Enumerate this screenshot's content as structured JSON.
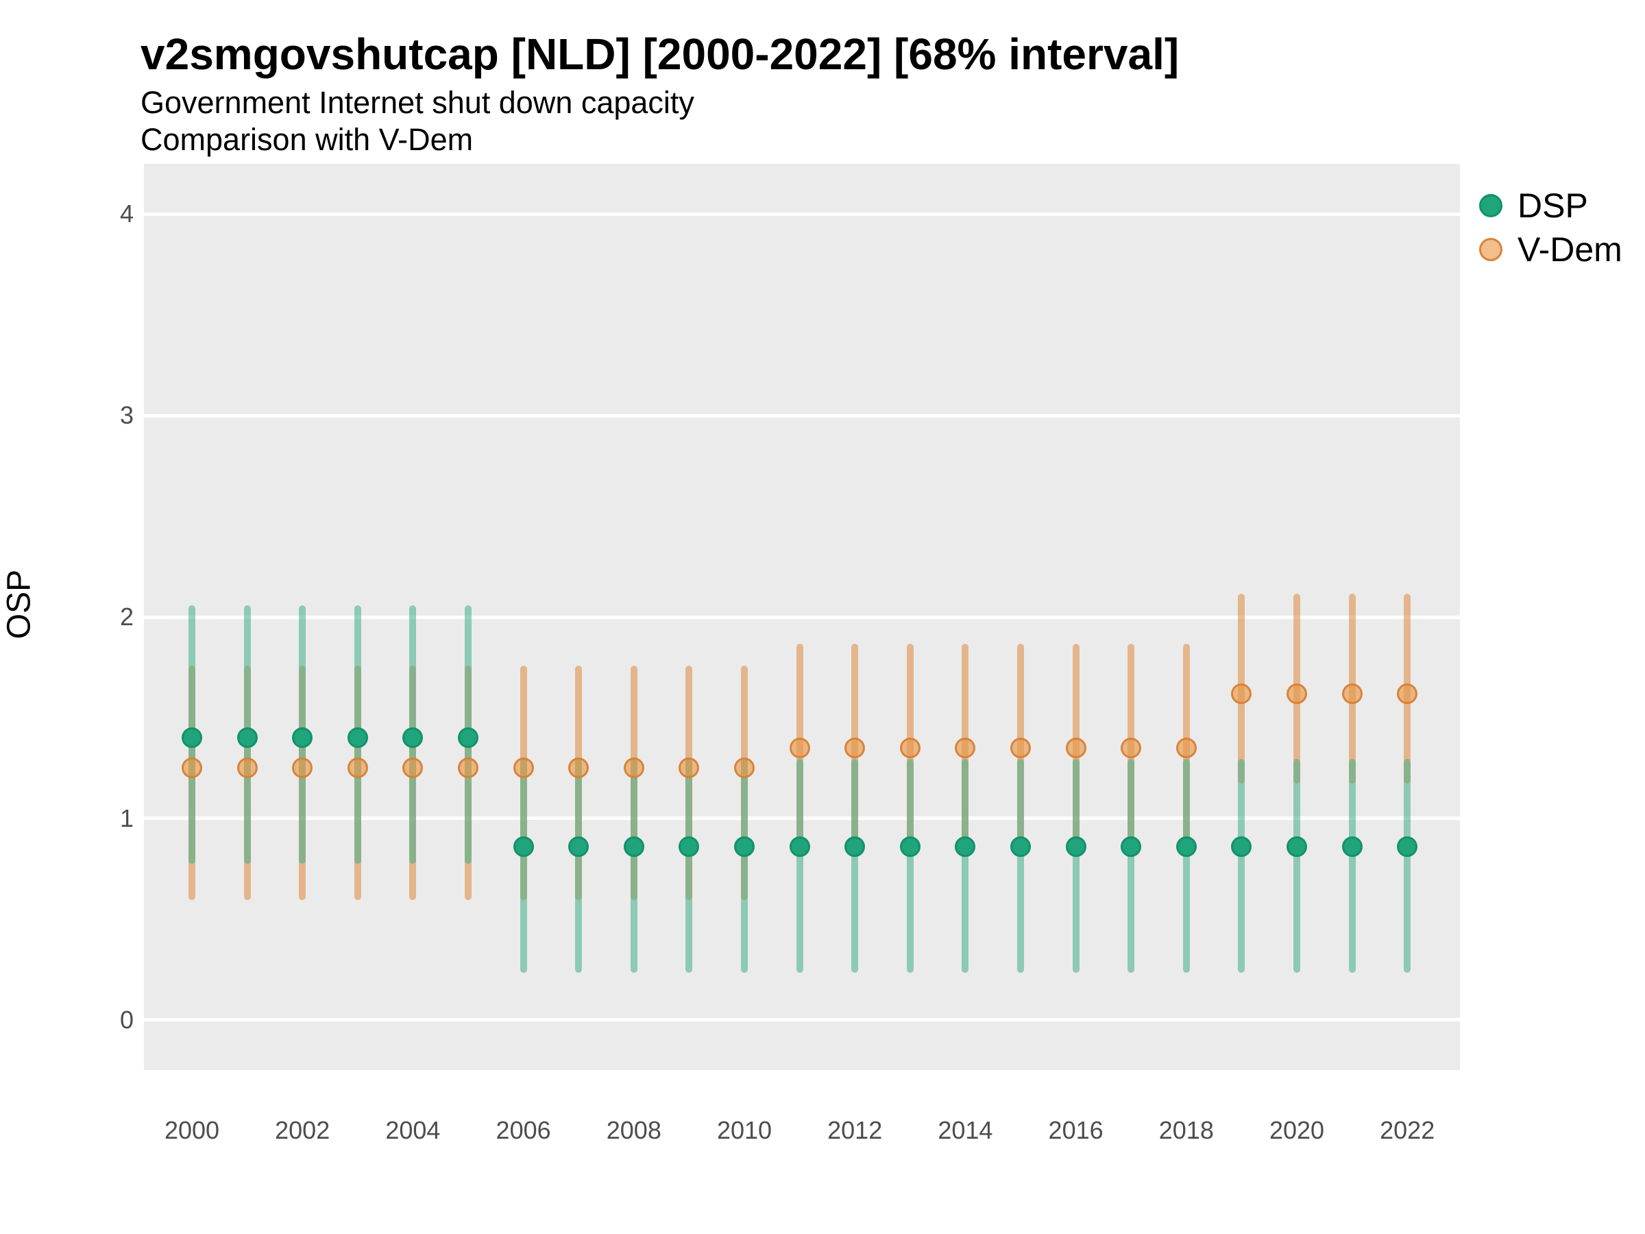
{
  "figure": {
    "title": "v2smgovshutcap [NLD] [2000-2022] [68% interval]",
    "subtitle_line1": "Government Internet shut down capacity",
    "subtitle_line2": "Comparison with V-Dem"
  },
  "chart_data": {
    "type": "scatter",
    "subtype": "pointrange (point estimates with 68% credible interval bars)",
    "title": "v2smgovshutcap [NLD] [2000-2022] [68% interval]",
    "subtitle": [
      "Government Internet shut down capacity",
      "Comparison with V-Dem"
    ],
    "xlabel": "",
    "ylabel": "OSP",
    "ylim": [
      -0.25,
      4.25
    ],
    "yticks": [
      0,
      1,
      2,
      3,
      4
    ],
    "xticks": [
      2000,
      2002,
      2004,
      2006,
      2008,
      2010,
      2012,
      2014,
      2016,
      2018,
      2020,
      2022
    ],
    "x_range": [
      2000,
      2022
    ],
    "grid": "horizontal white major gridlines on gray panel",
    "panel_bg": "#EBEBEB",
    "gridline_color": "#FFFFFF",
    "legend_position": "top-right",
    "series": [
      {
        "name": "DSP",
        "point_fill": "#1FA47B",
        "point_stroke": "#13926A",
        "bar_color": "rgba(62,175,138,0.55)",
        "points": [
          {
            "year": 2000,
            "value": 1.4,
            "lo": 0.79,
            "hi": 2.04
          },
          {
            "year": 2001,
            "value": 1.4,
            "lo": 0.79,
            "hi": 2.04
          },
          {
            "year": 2002,
            "value": 1.4,
            "lo": 0.79,
            "hi": 2.04
          },
          {
            "year": 2003,
            "value": 1.4,
            "lo": 0.79,
            "hi": 2.04
          },
          {
            "year": 2004,
            "value": 1.4,
            "lo": 0.79,
            "hi": 2.04
          },
          {
            "year": 2005,
            "value": 1.4,
            "lo": 0.79,
            "hi": 2.04
          },
          {
            "year": 2006,
            "value": 0.86,
            "lo": 0.25,
            "hi": 1.28
          },
          {
            "year": 2007,
            "value": 0.86,
            "lo": 0.25,
            "hi": 1.28
          },
          {
            "year": 2008,
            "value": 0.86,
            "lo": 0.25,
            "hi": 1.28
          },
          {
            "year": 2009,
            "value": 0.86,
            "lo": 0.25,
            "hi": 1.28
          },
          {
            "year": 2010,
            "value": 0.86,
            "lo": 0.25,
            "hi": 1.28
          },
          {
            "year": 2011,
            "value": 0.86,
            "lo": 0.25,
            "hi": 1.28
          },
          {
            "year": 2012,
            "value": 0.86,
            "lo": 0.25,
            "hi": 1.28
          },
          {
            "year": 2013,
            "value": 0.86,
            "lo": 0.25,
            "hi": 1.28
          },
          {
            "year": 2014,
            "value": 0.86,
            "lo": 0.25,
            "hi": 1.28
          },
          {
            "year": 2015,
            "value": 0.86,
            "lo": 0.25,
            "hi": 1.28
          },
          {
            "year": 2016,
            "value": 0.86,
            "lo": 0.25,
            "hi": 1.28
          },
          {
            "year": 2017,
            "value": 0.86,
            "lo": 0.25,
            "hi": 1.28
          },
          {
            "year": 2018,
            "value": 0.86,
            "lo": 0.25,
            "hi": 1.28
          },
          {
            "year": 2019,
            "value": 0.86,
            "lo": 0.25,
            "hi": 1.28
          },
          {
            "year": 2020,
            "value": 0.86,
            "lo": 0.25,
            "hi": 1.28
          },
          {
            "year": 2021,
            "value": 0.86,
            "lo": 0.25,
            "hi": 1.28
          },
          {
            "year": 2022,
            "value": 0.86,
            "lo": 0.25,
            "hi": 1.28
          }
        ]
      },
      {
        "name": "V-Dem",
        "point_fill": "rgba(232,150,70,0.62)",
        "point_stroke": "rgba(216,127,53,0.95)",
        "bar_color": "rgba(223,137,60,0.55)",
        "points": [
          {
            "year": 2000,
            "value": 1.25,
            "lo": 0.61,
            "hi": 1.74
          },
          {
            "year": 2001,
            "value": 1.25,
            "lo": 0.61,
            "hi": 1.74
          },
          {
            "year": 2002,
            "value": 1.25,
            "lo": 0.61,
            "hi": 1.74
          },
          {
            "year": 2003,
            "value": 1.25,
            "lo": 0.61,
            "hi": 1.74
          },
          {
            "year": 2004,
            "value": 1.25,
            "lo": 0.61,
            "hi": 1.74
          },
          {
            "year": 2005,
            "value": 1.25,
            "lo": 0.61,
            "hi": 1.74
          },
          {
            "year": 2006,
            "value": 1.25,
            "lo": 0.61,
            "hi": 1.74
          },
          {
            "year": 2007,
            "value": 1.25,
            "lo": 0.61,
            "hi": 1.74
          },
          {
            "year": 2008,
            "value": 1.25,
            "lo": 0.61,
            "hi": 1.74
          },
          {
            "year": 2009,
            "value": 1.25,
            "lo": 0.61,
            "hi": 1.74
          },
          {
            "year": 2010,
            "value": 1.25,
            "lo": 0.61,
            "hi": 1.74
          },
          {
            "year": 2011,
            "value": 1.35,
            "lo": 0.86,
            "hi": 1.85
          },
          {
            "year": 2012,
            "value": 1.35,
            "lo": 0.86,
            "hi": 1.85
          },
          {
            "year": 2013,
            "value": 1.35,
            "lo": 0.86,
            "hi": 1.85
          },
          {
            "year": 2014,
            "value": 1.35,
            "lo": 0.86,
            "hi": 1.85
          },
          {
            "year": 2015,
            "value": 1.35,
            "lo": 0.86,
            "hi": 1.85
          },
          {
            "year": 2016,
            "value": 1.35,
            "lo": 0.86,
            "hi": 1.85
          },
          {
            "year": 2017,
            "value": 1.35,
            "lo": 0.86,
            "hi": 1.85
          },
          {
            "year": 2018,
            "value": 1.35,
            "lo": 0.86,
            "hi": 1.85
          },
          {
            "year": 2019,
            "value": 1.62,
            "lo": 1.19,
            "hi": 2.1
          },
          {
            "year": 2020,
            "value": 1.62,
            "lo": 1.19,
            "hi": 2.1
          },
          {
            "year": 2021,
            "value": 1.62,
            "lo": 1.19,
            "hi": 2.1
          },
          {
            "year": 2022,
            "value": 1.62,
            "lo": 1.19,
            "hi": 2.1
          }
        ]
      }
    ]
  }
}
